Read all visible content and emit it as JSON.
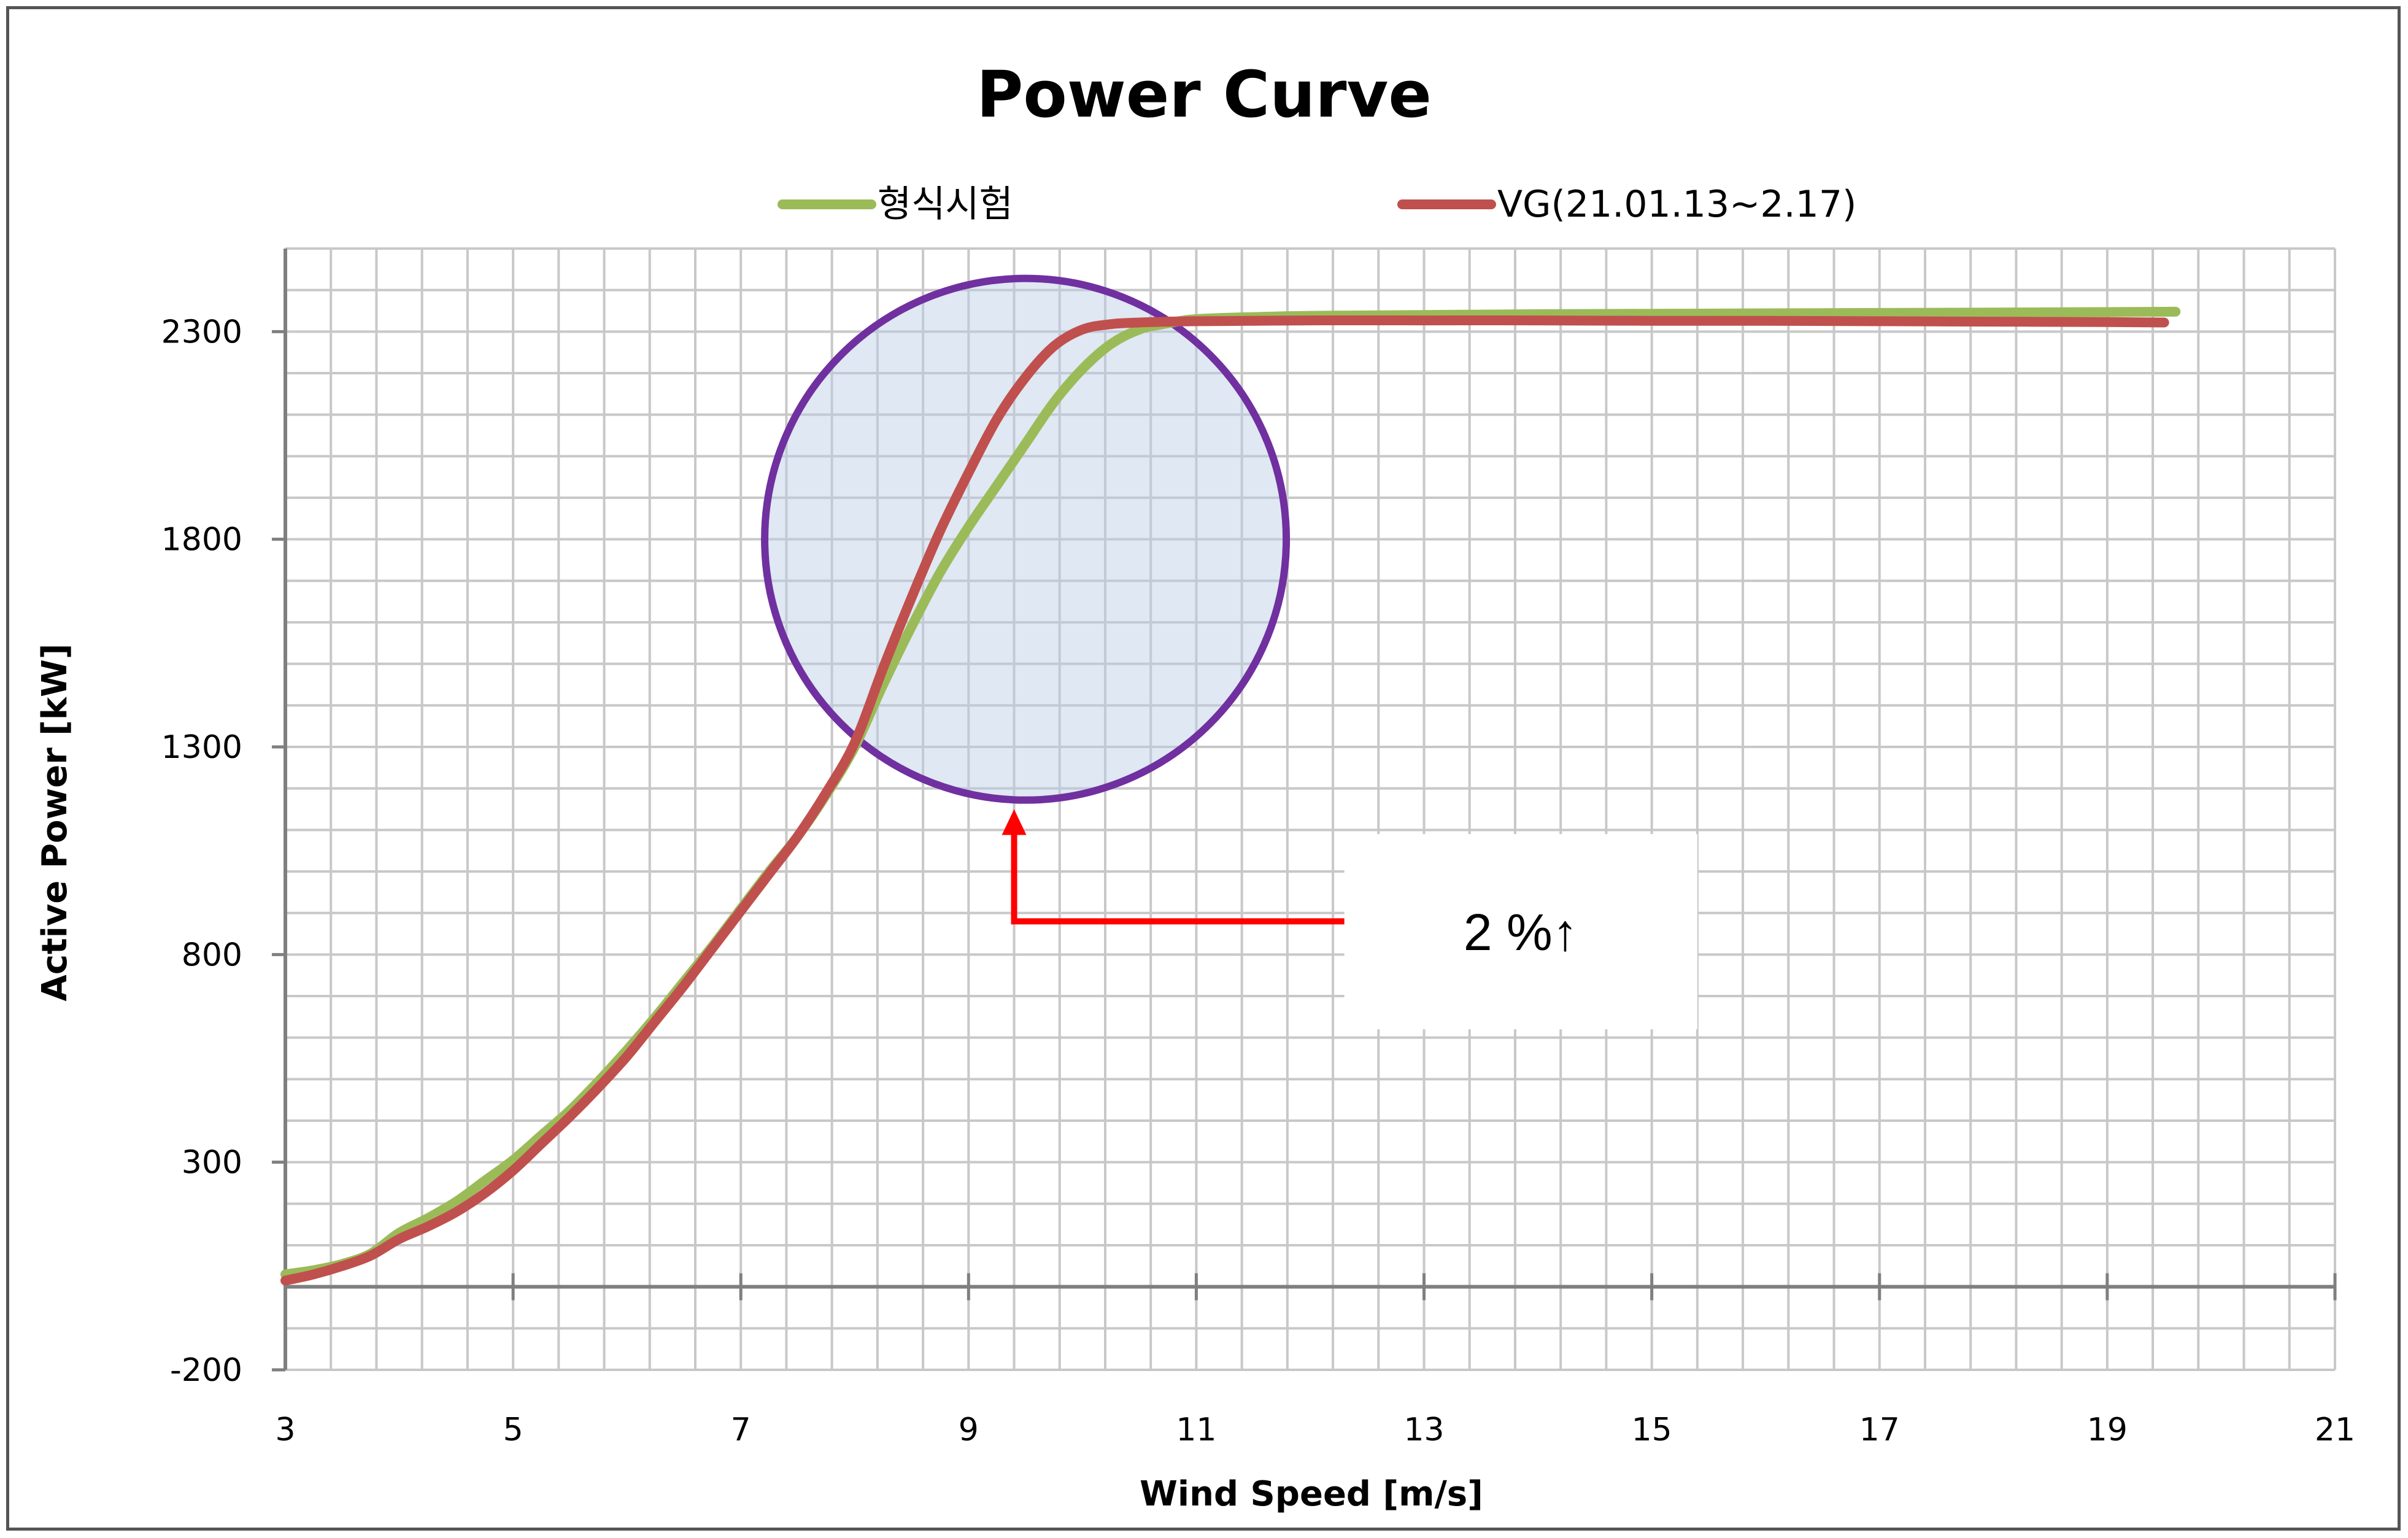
{
  "chart_data": {
    "type": "line",
    "title": "Power Curve",
    "xlabel": "Wind Speed [m/s]",
    "ylabel": "Active Power [kW]",
    "xlim": [
      3,
      21
    ],
    "ylim": [
      -200,
      2500
    ],
    "x_ticks": [
      3,
      5,
      7,
      9,
      11,
      13,
      15,
      17,
      19,
      21
    ],
    "y_ticks": [
      -200,
      300,
      800,
      1300,
      1800,
      2300
    ],
    "x_tick_labels": [
      "3",
      "5",
      "7",
      "9",
      "11",
      "13",
      "15",
      "17",
      "19",
      "21"
    ],
    "y_tick_labels": [
      "-200",
      "300",
      "800",
      "1300",
      "1800",
      "2300"
    ],
    "grid": true,
    "legend_position": "top",
    "series": [
      {
        "name": "형식시험",
        "color": "#9bbb59",
        "x": [
          3.0,
          3.25,
          3.5,
          3.75,
          4.0,
          4.25,
          4.5,
          4.75,
          5.0,
          5.25,
          5.5,
          5.75,
          6.0,
          6.25,
          6.5,
          6.75,
          7.0,
          7.25,
          7.5,
          7.75,
          8.0,
          8.25,
          8.5,
          8.75,
          9.0,
          9.25,
          9.5,
          9.75,
          10.0,
          10.25,
          10.5,
          10.75,
          11.0,
          11.5,
          12.0,
          13.0,
          14.0,
          15.0,
          16.0,
          17.0,
          18.0,
          19.0,
          19.6
        ],
        "values": [
          30,
          40,
          55,
          80,
          130,
          165,
          205,
          255,
          305,
          365,
          425,
          495,
          570,
          650,
          735,
          820,
          910,
          1000,
          1085,
          1185,
          1300,
          1450,
          1590,
          1720,
          1830,
          1930,
          2030,
          2130,
          2210,
          2270,
          2305,
          2320,
          2330,
          2335,
          2338,
          2340,
          2342,
          2343,
          2344,
          2345,
          2346,
          2347,
          2348
        ]
      },
      {
        "name": "VG(21.01.13~2.17)",
        "color": "#c0504d",
        "x": [
          3.0,
          3.25,
          3.5,
          3.75,
          4.0,
          4.25,
          4.5,
          4.75,
          5.0,
          5.25,
          5.5,
          5.75,
          6.0,
          6.25,
          6.5,
          6.75,
          7.0,
          7.25,
          7.5,
          7.75,
          8.0,
          8.25,
          8.5,
          8.75,
          9.0,
          9.25,
          9.5,
          9.75,
          10.0,
          10.25,
          10.5,
          10.75,
          11.0,
          11.5,
          12.0,
          13.0,
          14.0,
          15.0,
          16.0,
          17.0,
          18.0,
          19.0,
          19.5
        ],
        "values": [
          15,
          30,
          50,
          75,
          115,
          145,
          180,
          225,
          280,
          345,
          410,
          480,
          555,
          640,
          725,
          815,
          905,
          995,
          1085,
          1190,
          1310,
          1490,
          1660,
          1820,
          1960,
          2090,
          2190,
          2265,
          2305,
          2318,
          2322,
          2324,
          2325,
          2326,
          2327,
          2327,
          2327,
          2326,
          2326,
          2325,
          2324,
          2323,
          2322
        ]
      }
    ],
    "annotations": {
      "callout_text": "2 %↑",
      "highlight_circle": {
        "cx": 9.5,
        "cy": 1800
      },
      "arrow_x": 9.4,
      "arrow_target_y": 1150,
      "arrow_elbow_y": 880,
      "callout_box_x": [
        12.3,
        15.4
      ],
      "callout_box_y": [
        620,
        1090
      ]
    }
  }
}
